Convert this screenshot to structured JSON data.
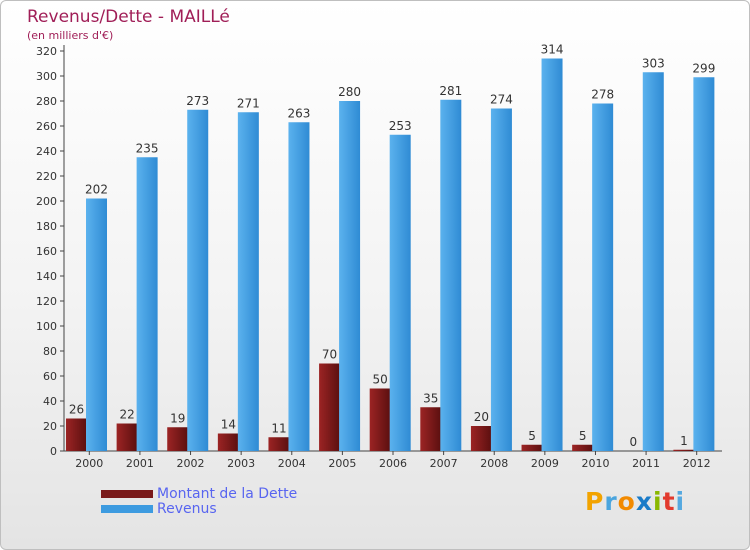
{
  "header": {
    "title": "Revenus/Dette - MAILLé",
    "subtitle": "(en milliers d'€)"
  },
  "chart_data": {
    "type": "bar",
    "categories": [
      "2000",
      "2001",
      "2002",
      "2003",
      "2004",
      "2005",
      "2006",
      "2007",
      "2008",
      "2009",
      "2010",
      "2011",
      "2012"
    ],
    "series": [
      {
        "name": "Montant de la Dette",
        "color": "#7a1a1a",
        "values": [
          26,
          22,
          19,
          14,
          11,
          70,
          50,
          35,
          20,
          5,
          5,
          0,
          1
        ]
      },
      {
        "name": "Revenus",
        "color": "#3d9be0",
        "values": [
          202,
          235,
          273,
          271,
          263,
          280,
          253,
          281,
          274,
          314,
          278,
          303,
          299
        ]
      }
    ],
    "ylim": [
      0,
      320
    ],
    "ytick_step": 20,
    "grid": false,
    "legend": "bottom-left",
    "data_labels": true
  },
  "logo": {
    "letters": [
      "P",
      "r",
      "o",
      "x",
      "i",
      "t",
      "i"
    ],
    "colors": [
      "#f2a300",
      "#4aa5de",
      "#f28a00",
      "#1a7bc8",
      "#8ab800",
      "#e23a2e",
      "#55a9e0"
    ]
  }
}
